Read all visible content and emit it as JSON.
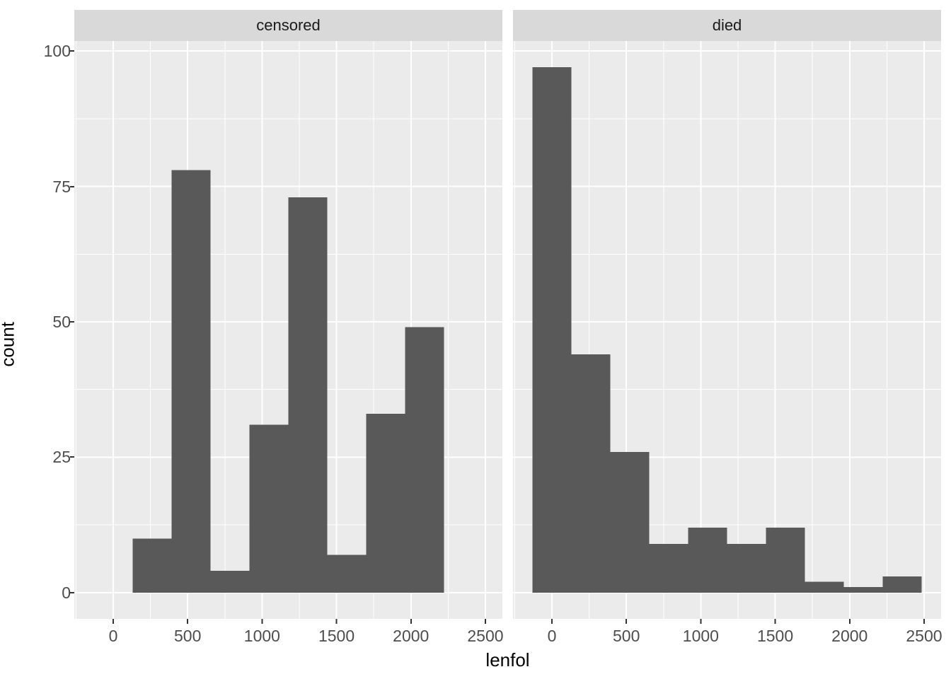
{
  "figure": {
    "kind": "faceted histogram (ggplot2 style)"
  },
  "chart_data": {
    "type": "bar",
    "subtype": "faceted-histogram",
    "xlabel": "lenfol",
    "ylabel": "count",
    "facets": [
      {
        "label": "censored",
        "bin_start": 130.7,
        "binwidth": 261.4,
        "counts": [
          10,
          78,
          4,
          31,
          73,
          7,
          33,
          49
        ]
      },
      {
        "label": "died",
        "bin_start": -130.7,
        "binwidth": 261.4,
        "counts": [
          97,
          44,
          26,
          9,
          12,
          9,
          12,
          2,
          1,
          3
        ]
      }
    ],
    "x_ticks": [
      0,
      500,
      1000,
      1500,
      2000,
      2500
    ],
    "y_ticks": [
      0,
      25,
      50,
      75,
      100
    ],
    "x_minor_ticks": [
      -250,
      250,
      750,
      1250,
      1750,
      2250
    ],
    "y_minor_ticks": [
      12.5,
      37.5,
      62.5,
      87.5
    ],
    "panel_x_range": [
      -261.4,
      2614.3
    ],
    "panel_y_range": [
      -4.85,
      101.85
    ],
    "xlim": [
      0,
      2500
    ],
    "ylim": [
      0,
      100
    ],
    "grid": true,
    "legend": "none"
  },
  "colors": {
    "bar_fill": "#595959",
    "panel_background": "#EBEBEB",
    "strip_background": "#D9D9D9",
    "grid_line": "#FFFFFF",
    "tick_mark": "#333333",
    "tick_label": "#4D4D4D",
    "axis_title": "#000000",
    "strip_text": "#1A1A1A",
    "page_background": "#FFFFFF"
  }
}
